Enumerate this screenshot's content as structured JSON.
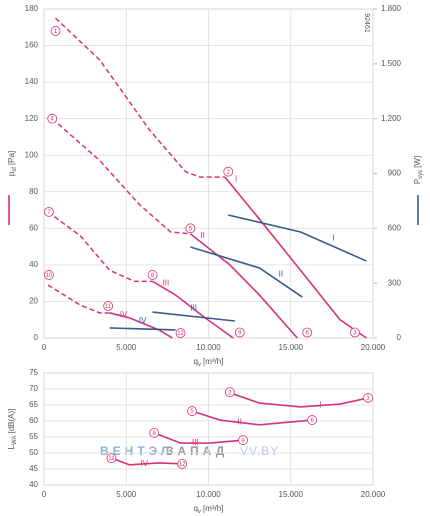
{
  "chart_data": [
    {
      "type": "line",
      "title": "92461",
      "x_label": {
        "symbol": "q",
        "sub": "v",
        "unit": "[m³/h]"
      },
      "y_label": {
        "symbol": "p",
        "sub": "sf",
        "unit": "[Pa]"
      },
      "y2_label": {
        "symbol": "P",
        "sub": "sys",
        "unit": "[W]"
      },
      "xlim": [
        0,
        20000
      ],
      "ylim": [
        0,
        180
      ],
      "y2lim": [
        0,
        1800
      ],
      "xticks": [
        0,
        {
          "value": 5000,
          "label": "5.000"
        },
        {
          "value": 10000,
          "label": "10.000"
        },
        {
          "value": 15000,
          "label": "15.000"
        },
        {
          "value": 20000,
          "label": "20.000"
        }
      ],
      "yticks": [
        0,
        20,
        40,
        60,
        80,
        100,
        120,
        140,
        160,
        180
      ],
      "y2ticks": [
        0,
        300,
        600,
        900,
        {
          "value": 1200,
          "label": "1.200"
        },
        {
          "value": 1500,
          "label": "1.500"
        },
        {
          "value": 1800,
          "label": "1.800"
        }
      ],
      "grid": true,
      "series": [
        {
          "name": "I",
          "color": "#d6337a",
          "axis": "y",
          "x": [
            11000,
            13100,
            15600,
            18000,
            19600
          ],
          "values": [
            88,
            65,
            37,
            10,
            0
          ],
          "stall": {
            "x": [
              700,
              3400,
              6400,
              8600,
              9500,
              11000
            ],
            "values": [
              175,
              152,
              114,
              91,
              88,
              88
            ]
          },
          "points": [
            {
              "label": "1",
              "x": 700,
              "y": 168
            },
            {
              "label": "2",
              "x": 11200,
              "y": 91
            },
            {
              "label": "3",
              "x": 18900,
              "y": 3
            }
          ]
        },
        {
          "name": "II",
          "color": "#d6337a",
          "axis": "y",
          "x": [
            8900,
            11300,
            13100,
            15400
          ],
          "values": [
            57,
            40,
            23.5,
            0
          ],
          "stall": {
            "x": [
              500,
              3400,
              5800,
              7700,
              8900
            ],
            "values": [
              120,
              97,
              73,
              58,
              57
            ]
          },
          "points": [
            {
              "label": "4",
              "x": 500,
              "y": 120
            },
            {
              "label": "5",
              "x": 8900,
              "y": 60
            },
            {
              "label": "6",
              "x": 16000,
              "y": 3
            }
          ]
        },
        {
          "name": "III",
          "color": "#d6337a",
          "axis": "y",
          "x": [
            6600,
            8000,
            9800,
            11500
          ],
          "values": [
            31,
            23.5,
            11,
            0
          ],
          "stall": {
            "x": [
              240,
              2200,
              4000,
              5500,
              6600
            ],
            "values": [
              69,
              56,
              37,
              31,
              31
            ]
          },
          "points": [
            {
              "label": "7",
              "x": 300,
              "y": 69
            },
            {
              "label": "8",
              "x": 6600,
              "y": 34.5
            },
            {
              "label": "9",
              "x": 11900,
              "y": 3
            }
          ]
        },
        {
          "name": "IV",
          "color": "#d6337a",
          "axis": "y",
          "x": [
            4000,
            5200,
            7000,
            7800
          ],
          "values": [
            13.7,
            11,
            4.4,
            0
          ],
          "stall": {
            "x": [
              240,
              2200,
              3400,
              4000
            ],
            "values": [
              29,
              18,
              13.7,
              13.7
            ]
          },
          "points": [
            {
              "label": "10",
              "x": 300,
              "y": 34.5
            },
            {
              "label": "11",
              "x": 3900,
              "y": 17.5
            },
            {
              "label": "12",
              "x": 8300,
              "y": 2.7
            }
          ]
        },
        {
          "name": "I",
          "color": "#3a5a8c",
          "axis": "y2",
          "x": [
            11200,
            15600,
            19600
          ],
          "values": [
            673,
            580,
            421
          ]
        },
        {
          "name": "II",
          "color": "#3a5a8c",
          "axis": "y2",
          "x": [
            8900,
            13100,
            15700
          ],
          "values": [
            498,
            383,
            224
          ]
        },
        {
          "name": "III",
          "color": "#3a5a8c",
          "axis": "y2",
          "x": [
            6600,
            11600
          ],
          "values": [
            142,
            93
          ]
        },
        {
          "name": "IV",
          "color": "#3a5a8c",
          "axis": "y2",
          "x": [
            4000,
            8000
          ],
          "values": [
            55,
            44
          ]
        }
      ]
    },
    {
      "type": "line",
      "x_label": {
        "symbol": "q",
        "sub": "v",
        "unit": "[m³/h]"
      },
      "y_label": {
        "symbol": "L",
        "sub": "WA",
        "unit": "[dB(A)]"
      },
      "xlim": [
        0,
        20000
      ],
      "ylim": [
        40,
        75
      ],
      "xticks": [
        0,
        {
          "value": 5000,
          "label": "5.000"
        },
        {
          "value": 10000,
          "label": "10.000"
        },
        {
          "value": 15000,
          "label": "15.000"
        },
        {
          "value": 20000,
          "label": "20.000"
        }
      ],
      "yticks": [
        40,
        45,
        50,
        55,
        60,
        65,
        70,
        75
      ],
      "grid": true,
      "series": [
        {
          "name": "I",
          "color": "#d6337a",
          "x": [
            11300,
            13100,
            15600,
            18000,
            19700
          ],
          "values": [
            68.8,
            65.6,
            64.4,
            65.3,
            67.2
          ],
          "points": [
            {
              "label": "2",
              "x": 11300,
              "y": 69
            },
            {
              "label": "3",
              "x": 19700,
              "y": 67.2
            }
          ]
        },
        {
          "name": "II",
          "color": "#d6337a",
          "x": [
            9000,
            10700,
            13100,
            16300
          ],
          "values": [
            63.1,
            60.3,
            58.8,
            60.3
          ],
          "points": [
            {
              "label": "5",
              "x": 9000,
              "y": 63.1
            },
            {
              "label": "6",
              "x": 16300,
              "y": 60.3
            }
          ]
        },
        {
          "name": "III",
          "color": "#d6337a",
          "x": [
            6700,
            8300,
            10100,
            12100
          ],
          "values": [
            56.3,
            53.1,
            53.1,
            54
          ],
          "points": [
            {
              "label": "8",
              "x": 6700,
              "y": 56.3
            },
            {
              "label": "9",
              "x": 12100,
              "y": 54
            }
          ]
        },
        {
          "name": "IV",
          "color": "#d6337a",
          "x": [
            4100,
            5200,
            7000,
            8400
          ],
          "values": [
            48.4,
            46.3,
            46.9,
            46.6
          ],
          "points": [
            {
              "label": "11",
              "x": 4100,
              "y": 48.4
            },
            {
              "label": "12",
              "x": 8400,
              "y": 46.6
            }
          ]
        }
      ]
    }
  ],
  "watermark": [
    "ВЕНТЭЛ",
    "ЗАПАД",
    "VV.BY"
  ]
}
